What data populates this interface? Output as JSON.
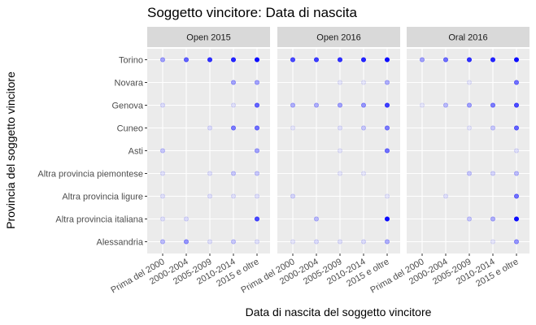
{
  "chart_data": {
    "type": "scatter",
    "title": "Soggetto vincitore: Data di nascita",
    "xlabel": "Data di nascita del soggetto vincitore",
    "ylabel": "Provincia del soggetto vincitore",
    "x_categories": [
      "Prima del 2000",
      "2000-2004",
      "2005-2009",
      "2010-2014",
      "2015 e oltre"
    ],
    "y_categories": [
      "Alessandria",
      "Altra provincia italiana",
      "Altra provincia ligure",
      "Altra provincia piemontese",
      "Asti",
      "Cuneo",
      "Genova",
      "Novara",
      "Torino"
    ],
    "grid": true,
    "panel_background": "#ebebeb",
    "strip_background": "#d9d9d9",
    "point_color": "#0000ff",
    "encoding": "opacity ∝ value (0–1)",
    "panels": [
      {
        "name": "Open 2015",
        "points": [
          {
            "x": "Prima del 2000",
            "y": "Torino",
            "value": 0.35
          },
          {
            "x": "2000-2004",
            "y": "Torino",
            "value": 0.6
          },
          {
            "x": "2005-2009",
            "y": "Torino",
            "value": 0.8
          },
          {
            "x": "2010-2014",
            "y": "Torino",
            "value": 0.85
          },
          {
            "x": "2015 e oltre",
            "y": "Torino",
            "value": 0.95
          },
          {
            "x": "2010-2014",
            "y": "Novara",
            "value": 0.35
          },
          {
            "x": "2015 e oltre",
            "y": "Novara",
            "value": 0.35
          },
          {
            "x": "Prima del 2000",
            "y": "Genova",
            "value": 0.12
          },
          {
            "x": "2010-2014",
            "y": "Genova",
            "value": 0.1
          },
          {
            "x": "2015 e oltre",
            "y": "Genova",
            "value": 0.6
          },
          {
            "x": "2005-2009",
            "y": "Cuneo",
            "value": 0.12
          },
          {
            "x": "2010-2014",
            "y": "Cuneo",
            "value": 0.5
          },
          {
            "x": "2015 e oltre",
            "y": "Cuneo",
            "value": 0.55
          },
          {
            "x": "Prima del 2000",
            "y": "Asti",
            "value": 0.2
          },
          {
            "x": "2015 e oltre",
            "y": "Asti",
            "value": 0.35
          },
          {
            "x": "Prima del 2000",
            "y": "Altra provincia piemontese",
            "value": 0.1
          },
          {
            "x": "2005-2009",
            "y": "Altra provincia piemontese",
            "value": 0.1
          },
          {
            "x": "2010-2014",
            "y": "Altra provincia piemontese",
            "value": 0.2
          },
          {
            "x": "2015 e oltre",
            "y": "Altra provincia piemontese",
            "value": 0.2
          },
          {
            "x": "Prima del 2000",
            "y": "Altra provincia ligure",
            "value": 0.1
          },
          {
            "x": "2005-2009",
            "y": "Altra provincia ligure",
            "value": 0.1
          },
          {
            "x": "2010-2014",
            "y": "Altra provincia ligure",
            "value": 0.1
          },
          {
            "x": "2015 e oltre",
            "y": "Altra provincia ligure",
            "value": 0.1
          },
          {
            "x": "Prima del 2000",
            "y": "Altra provincia italiana",
            "value": 0.1
          },
          {
            "x": "2000-2004",
            "y": "Altra provincia italiana",
            "value": 0.12
          },
          {
            "x": "2015 e oltre",
            "y": "Altra provincia italiana",
            "value": 0.7
          },
          {
            "x": "Prima del 2000",
            "y": "Alessandria",
            "value": 0.25
          },
          {
            "x": "2000-2004",
            "y": "Alessandria",
            "value": 0.4
          },
          {
            "x": "2005-2009",
            "y": "Alessandria",
            "value": 0.1
          },
          {
            "x": "2010-2014",
            "y": "Alessandria",
            "value": 0.2
          },
          {
            "x": "2015 e oltre",
            "y": "Alessandria",
            "value": 0.1
          }
        ]
      },
      {
        "name": "Open 2016",
        "points": [
          {
            "x": "Prima del 2000",
            "y": "Torino",
            "value": 0.7
          },
          {
            "x": "2000-2004",
            "y": "Torino",
            "value": 0.75
          },
          {
            "x": "2005-2009",
            "y": "Torino",
            "value": 0.8
          },
          {
            "x": "2010-2014",
            "y": "Torino",
            "value": 0.85
          },
          {
            "x": "2015 e oltre",
            "y": "Torino",
            "value": 0.95
          },
          {
            "x": "2005-2009",
            "y": "Novara",
            "value": 0.08
          },
          {
            "x": "2010-2014",
            "y": "Novara",
            "value": 0.08
          },
          {
            "x": "2015 e oltre",
            "y": "Novara",
            "value": 0.3
          },
          {
            "x": "Prima del 2000",
            "y": "Genova",
            "value": 0.3
          },
          {
            "x": "2000-2004",
            "y": "Genova",
            "value": 0.3
          },
          {
            "x": "2005-2009",
            "y": "Genova",
            "value": 0.35
          },
          {
            "x": "2010-2014",
            "y": "Genova",
            "value": 0.4
          },
          {
            "x": "2015 e oltre",
            "y": "Genova",
            "value": 0.75
          },
          {
            "x": "Prima del 2000",
            "y": "Cuneo",
            "value": 0.08
          },
          {
            "x": "2005-2009",
            "y": "Cuneo",
            "value": 0.1
          },
          {
            "x": "2010-2014",
            "y": "Cuneo",
            "value": 0.2
          },
          {
            "x": "2015 e oltre",
            "y": "Cuneo",
            "value": 0.5
          },
          {
            "x": "2005-2009",
            "y": "Asti",
            "value": 0.08
          },
          {
            "x": "2015 e oltre",
            "y": "Asti",
            "value": 0.55
          },
          {
            "x": "2005-2009",
            "y": "Altra provincia piemontese",
            "value": 0.08
          },
          {
            "x": "2010-2014",
            "y": "Altra provincia piemontese",
            "value": 0.08
          },
          {
            "x": "Prima del 2000",
            "y": "Altra provincia ligure",
            "value": 0.15
          },
          {
            "x": "2015 e oltre",
            "y": "Altra provincia ligure",
            "value": 0.08
          },
          {
            "x": "2000-2004",
            "y": "Altra provincia italiana",
            "value": 0.25
          },
          {
            "x": "2015 e oltre",
            "y": "Altra provincia italiana",
            "value": 0.95
          },
          {
            "x": "Prima del 2000",
            "y": "Alessandria",
            "value": 0.08
          },
          {
            "x": "2000-2004",
            "y": "Alessandria",
            "value": 0.12
          },
          {
            "x": "2005-2009",
            "y": "Alessandria",
            "value": 0.1
          },
          {
            "x": "2010-2014",
            "y": "Alessandria",
            "value": 0.12
          },
          {
            "x": "2015 e oltre",
            "y": "Alessandria",
            "value": 0.3
          }
        ]
      },
      {
        "name": "Oral 2016",
        "points": [
          {
            "x": "Prima del 2000",
            "y": "Torino",
            "value": 0.35
          },
          {
            "x": "2000-2004",
            "y": "Torino",
            "value": 0.55
          },
          {
            "x": "2005-2009",
            "y": "Torino",
            "value": 0.8
          },
          {
            "x": "2010-2014",
            "y": "Torino",
            "value": 0.85
          },
          {
            "x": "2015 e oltre",
            "y": "Torino",
            "value": 0.95
          },
          {
            "x": "2005-2009",
            "y": "Novara",
            "value": 0.08
          },
          {
            "x": "2015 e oltre",
            "y": "Novara",
            "value": 0.55
          },
          {
            "x": "Prima del 2000",
            "y": "Genova",
            "value": 0.08
          },
          {
            "x": "2000-2004",
            "y": "Genova",
            "value": 0.25
          },
          {
            "x": "2005-2009",
            "y": "Genova",
            "value": 0.35
          },
          {
            "x": "2010-2014",
            "y": "Genova",
            "value": 0.5
          },
          {
            "x": "2015 e oltre",
            "y": "Genova",
            "value": 0.7
          },
          {
            "x": "2005-2009",
            "y": "Cuneo",
            "value": 0.08
          },
          {
            "x": "2010-2014",
            "y": "Cuneo",
            "value": 0.2
          },
          {
            "x": "2015 e oltre",
            "y": "Cuneo",
            "value": 0.6
          },
          {
            "x": "2015 e oltre",
            "y": "Asti",
            "value": 0.1
          },
          {
            "x": "2005-2009",
            "y": "Altra provincia piemontese",
            "value": 0.2
          },
          {
            "x": "2010-2014",
            "y": "Altra provincia piemontese",
            "value": 0.15
          },
          {
            "x": "2015 e oltre",
            "y": "Altra provincia piemontese",
            "value": 0.25
          },
          {
            "x": "2000-2004",
            "y": "Altra provincia ligure",
            "value": 0.1
          },
          {
            "x": "2015 e oltre",
            "y": "Altra provincia ligure",
            "value": 0.55
          },
          {
            "x": "2005-2009",
            "y": "Altra provincia italiana",
            "value": 0.2
          },
          {
            "x": "2010-2014",
            "y": "Altra provincia italiana",
            "value": 0.3
          },
          {
            "x": "2015 e oltre",
            "y": "Altra provincia italiana",
            "value": 0.95
          },
          {
            "x": "2010-2014",
            "y": "Alessandria",
            "value": 0.08
          },
          {
            "x": "2015 e oltre",
            "y": "Alessandria",
            "value": 0.4
          }
        ]
      }
    ]
  }
}
